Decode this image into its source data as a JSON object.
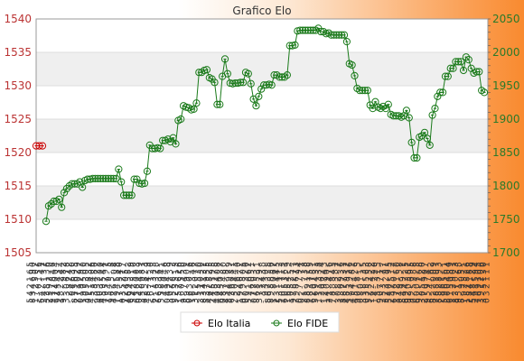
{
  "chart_data": {
    "type": "line",
    "title": "Grafico Elo",
    "xlabel": "",
    "ylabel": "",
    "y_left": {
      "min": 1505,
      "max": 1540,
      "ticks": [
        1505,
        1510,
        1515,
        1520,
        1525,
        1530,
        1535,
        1540
      ],
      "color": "#cc0000"
    },
    "y_right": {
      "min": 1700,
      "max": 2050,
      "ticks": [
        1700,
        1750,
        1800,
        1850,
        1900,
        1950,
        2000,
        2050
      ],
      "color": "#1a7a1a"
    },
    "grid": true,
    "legend": {
      "position": "bottom-center"
    },
    "series": [
      {
        "name": "Elo Italia",
        "axis": "left",
        "color": "#cc0000",
        "values": [
          1521,
          1521,
          1521
        ]
      },
      {
        "name": "Elo FIDE",
        "axis": "right",
        "color": "#1a7a1a",
        "values": [
          1747,
          1770,
          1773,
          1777,
          1777,
          1780,
          1768,
          1790,
          1796,
          1800,
          1803,
          1803,
          1803,
          1806,
          1798,
          1808,
          1810,
          1810,
          1811,
          1811,
          1811,
          1811,
          1811,
          1811,
          1811,
          1811,
          1811,
          1811,
          1825,
          1806,
          1786,
          1786,
          1786,
          1786,
          1810,
          1810,
          1804,
          1803,
          1804,
          1822,
          1861,
          1856,
          1856,
          1857,
          1856,
          1868,
          1868,
          1870,
          1866,
          1872,
          1863,
          1898,
          1900,
          1920,
          1918,
          1917,
          1914,
          1915,
          1924,
          1970,
          1970,
          1973,
          1974,
          1962,
          1960,
          1955,
          1922,
          1922,
          1964,
          1990,
          1968,
          1954,
          1953,
          1954,
          1954,
          1955,
          1955,
          1970,
          1968,
          1953,
          1930,
          1920,
          1934,
          1945,
          1951,
          1951,
          1952,
          1951,
          1966,
          1966,
          1963,
          1963,
          1963,
          1966,
          2010,
          2010,
          2011,
          2032,
          2033,
          2033,
          2033,
          2033,
          2033,
          2033,
          2033,
          2036,
          2031,
          2031,
          2028,
          2029,
          2026,
          2026,
          2026,
          2026,
          2026,
          2026,
          2016,
          1983,
          1981,
          1965,
          1946,
          1943,
          1943,
          1943,
          1943,
          1921,
          1916,
          1926,
          1918,
          1916,
          1919,
          1916,
          1922,
          1907,
          1905,
          1905,
          1905,
          1903,
          1905,
          1913,
          1902,
          1865,
          1842,
          1842,
          1873,
          1875,
          1880,
          1871,
          1861,
          1906,
          1916,
          1934,
          1940,
          1940,
          1964,
          1964,
          1976,
          1976,
          1986,
          1986,
          1986,
          1973,
          1993,
          1989,
          1976,
          1969,
          1971,
          1971,
          1943,
          1940
        ]
      }
    ]
  }
}
